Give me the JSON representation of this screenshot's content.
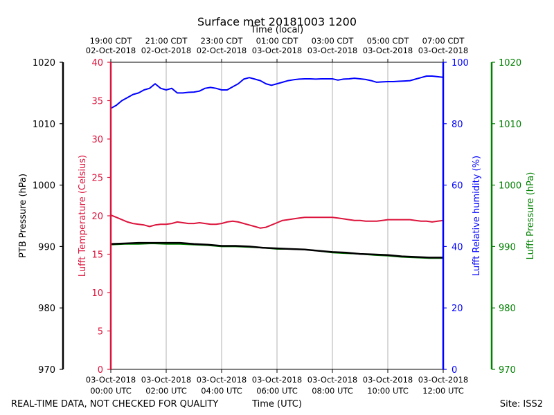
{
  "title": "Surface met 20181003 1200",
  "footer": {
    "left_note": "REAL-TIME DATA, NOT CHECKED FOR QUALITY",
    "xlabel": "Time (UTC)",
    "site": "Site: ISS2"
  },
  "colors": {
    "ptb_pressure": "#000000",
    "temperature": "#dc143c",
    "humidity": "#0000ff",
    "lufft_pressure": "#008000",
    "grid": "#b0b0b0"
  },
  "chart_data": {
    "type": "line",
    "title": "Surface met 20181003 1200",
    "xlabel": "Time (UTC)",
    "x2label": "Time (local)",
    "xlim": [
      0,
      12
    ],
    "grid": true,
    "x_ticks_utc": [
      {
        "x": 0,
        "line1": "03-Oct-2018",
        "line2": "00:00 UTC"
      },
      {
        "x": 2,
        "line1": "03-Oct-2018",
        "line2": "02:00 UTC"
      },
      {
        "x": 4,
        "line1": "03-Oct-2018",
        "line2": "04:00 UTC"
      },
      {
        "x": 6,
        "line1": "03-Oct-2018",
        "line2": "06:00 UTC"
      },
      {
        "x": 8,
        "line1": "03-Oct-2018",
        "line2": "08:00 UTC"
      },
      {
        "x": 10,
        "line1": "03-Oct-2018",
        "line2": "10:00 UTC"
      },
      {
        "x": 12,
        "line1": "03-Oct-2018",
        "line2": "12:00 UTC"
      }
    ],
    "x_ticks_local": [
      {
        "x": 0,
        "line1": "19:00 CDT",
        "line2": "02-Oct-2018"
      },
      {
        "x": 2,
        "line1": "21:00 CDT",
        "line2": "02-Oct-2018"
      },
      {
        "x": 4,
        "line1": "23:00 CDT",
        "line2": "02-Oct-2018"
      },
      {
        "x": 6,
        "line1": "01:00 CDT",
        "line2": "03-Oct-2018"
      },
      {
        "x": 8,
        "line1": "03:00 CDT",
        "line2": "03-Oct-2018"
      },
      {
        "x": 10,
        "line1": "05:00 CDT",
        "line2": "03-Oct-2018"
      },
      {
        "x": 12,
        "line1": "07:00 CDT",
        "line2": "03-Oct-2018"
      }
    ],
    "axes": [
      {
        "id": "ptb",
        "label": "PTB Pressure (hPa)",
        "ylim": [
          970,
          1020
        ],
        "ticks": [
          970,
          980,
          990,
          1000,
          1010,
          1020
        ],
        "color": "#000000"
      },
      {
        "id": "temp",
        "label": "Lufft Temperature (Celsius)",
        "ylim": [
          0,
          40
        ],
        "ticks": [
          0,
          5,
          10,
          15,
          20,
          25,
          30,
          35,
          40
        ],
        "color": "#dc143c"
      },
      {
        "id": "rh",
        "label": "Lufft Relative humidity (%)",
        "ylim": [
          0,
          100
        ],
        "ticks": [
          0,
          20,
          40,
          60,
          80,
          100
        ],
        "color": "#0000ff"
      },
      {
        "id": "lufft_p",
        "label": "Lufft Pressure (hPa)",
        "ylim": [
          970,
          1020
        ],
        "ticks": [
          970,
          980,
          990,
          1000,
          1010,
          1020
        ],
        "color": "#008000"
      }
    ],
    "series": [
      {
        "axis": "rh",
        "color": "#0000ff",
        "x": [
          0,
          0.2,
          0.4,
          0.6,
          0.8,
          1.0,
          1.2,
          1.4,
          1.6,
          1.8,
          2.0,
          2.2,
          2.4,
          2.6,
          2.8,
          3.0,
          3.2,
          3.4,
          3.6,
          3.8,
          4.0,
          4.2,
          4.4,
          4.6,
          4.8,
          5.0,
          5.2,
          5.4,
          5.6,
          5.8,
          6.0,
          6.2,
          6.4,
          6.6,
          6.8,
          7.0,
          7.2,
          7.4,
          7.6,
          7.8,
          8.0,
          8.2,
          8.4,
          8.6,
          8.8,
          9.0,
          9.2,
          9.4,
          9.6,
          9.8,
          10.0,
          10.2,
          10.4,
          10.6,
          10.8,
          11.0,
          11.2,
          11.4,
          11.6,
          11.8,
          12.0
        ],
        "values": [
          85,
          86,
          87.5,
          88.5,
          89.5,
          90,
          91,
          91.5,
          93,
          91.5,
          91,
          91.5,
          90,
          90,
          90.2,
          90.3,
          90.6,
          91.5,
          91.8,
          91.5,
          91,
          91,
          92,
          93,
          94.5,
          95,
          94.5,
          94,
          93,
          92.5,
          93,
          93.5,
          94,
          94.3,
          94.5,
          94.6,
          94.6,
          94.5,
          94.6,
          94.6,
          94.6,
          94.2,
          94.5,
          94.6,
          94.8,
          94.6,
          94.4,
          94.0,
          93.5,
          93.6,
          93.7,
          93.7,
          93.8,
          93.9,
          94,
          94.5,
          95,
          95.5,
          95.5,
          95.3,
          95.1
        ]
      },
      {
        "axis": "temp",
        "color": "#dc143c",
        "x": [
          0,
          0.2,
          0.4,
          0.6,
          0.8,
          1.0,
          1.2,
          1.4,
          1.6,
          1.8,
          2.0,
          2.2,
          2.4,
          2.6,
          2.8,
          3.0,
          3.2,
          3.4,
          3.6,
          3.8,
          4.0,
          4.2,
          4.4,
          4.6,
          4.8,
          5.0,
          5.2,
          5.4,
          5.6,
          5.8,
          6.0,
          6.2,
          6.4,
          6.6,
          6.8,
          7.0,
          7.2,
          7.4,
          7.6,
          7.8,
          8.0,
          8.2,
          8.4,
          8.6,
          8.8,
          9.0,
          9.2,
          9.4,
          9.6,
          9.8,
          10.0,
          10.2,
          10.4,
          10.6,
          10.8,
          11.0,
          11.2,
          11.4,
          11.6,
          11.8,
          12.0
        ],
        "values": [
          20.1,
          19.8,
          19.5,
          19.2,
          19.0,
          18.9,
          18.8,
          18.6,
          18.8,
          18.9,
          18.9,
          19.0,
          19.2,
          19.1,
          19.0,
          19.0,
          19.1,
          19.0,
          18.9,
          18.9,
          19.0,
          19.2,
          19.3,
          19.2,
          19.0,
          18.8,
          18.6,
          18.4,
          18.5,
          18.8,
          19.1,
          19.4,
          19.5,
          19.6,
          19.7,
          19.8,
          19.8,
          19.8,
          19.8,
          19.8,
          19.8,
          19.7,
          19.6,
          19.5,
          19.4,
          19.4,
          19.3,
          19.3,
          19.3,
          19.4,
          19.5,
          19.5,
          19.5,
          19.5,
          19.5,
          19.4,
          19.3,
          19.3,
          19.2,
          19.3,
          19.4
        ]
      },
      {
        "axis": "lufft_p",
        "color": "#008000",
        "x": [
          0,
          0.5,
          1.0,
          1.5,
          2.0,
          2.5,
          3.0,
          3.5,
          4.0,
          4.5,
          5.0,
          5.5,
          6.0,
          6.5,
          7.0,
          7.5,
          8.0,
          8.5,
          9.0,
          9.5,
          10.0,
          10.5,
          11.0,
          11.5,
          12.0
        ],
        "values": [
          990.3,
          990.4,
          990.4,
          990.5,
          990.4,
          990.4,
          990.3,
          990.2,
          990.0,
          990.0,
          989.9,
          989.8,
          989.6,
          989.6,
          989.5,
          989.3,
          989.0,
          988.9,
          988.8,
          988.6,
          988.5,
          988.3,
          988.2,
          988.1,
          988.1
        ]
      },
      {
        "axis": "ptb",
        "color": "#000000",
        "x": [
          0,
          0.5,
          1.0,
          1.5,
          2.0,
          2.5,
          3.0,
          3.5,
          4.0,
          4.5,
          5.0,
          5.5,
          6.0,
          6.5,
          7.0,
          7.5,
          8.0,
          8.5,
          9.0,
          9.5,
          10.0,
          10.5,
          11.0,
          11.5,
          12.0
        ],
        "values": [
          990.4,
          990.5,
          990.6,
          990.6,
          990.6,
          990.6,
          990.4,
          990.3,
          990.1,
          990.1,
          990.0,
          989.8,
          989.7,
          989.6,
          989.5,
          989.3,
          989.1,
          989.0,
          988.8,
          988.7,
          988.6,
          988.4,
          988.3,
          988.2,
          988.2
        ]
      }
    ]
  }
}
